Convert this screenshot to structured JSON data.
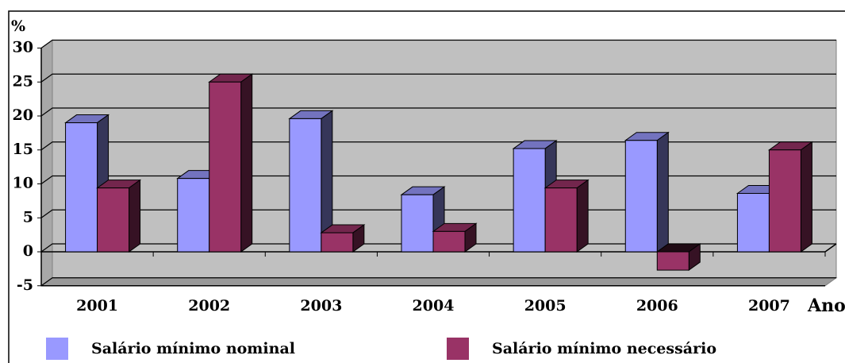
{
  "chart_data": {
    "type": "bar",
    "y_label": "%",
    "x_label": "Ano",
    "categories": [
      "2001",
      "2002",
      "2003",
      "2004",
      "2005",
      "2006",
      "2007"
    ],
    "series": [
      {
        "name": "Salário mínimo nominal",
        "color": "#9999ff",
        "values": [
          19,
          10.8,
          19.6,
          8.4,
          15.2,
          16.4,
          8.6
        ]
      },
      {
        "name": "Salário mínimo necessário",
        "color": "#993366",
        "values": [
          9.4,
          25,
          2.8,
          3,
          9.4,
          -2.7,
          15
        ]
      }
    ],
    "ylim": [
      -5,
      30
    ],
    "yticks": [
      -5,
      0,
      5,
      10,
      15,
      20,
      25,
      30
    ],
    "grid": true
  }
}
